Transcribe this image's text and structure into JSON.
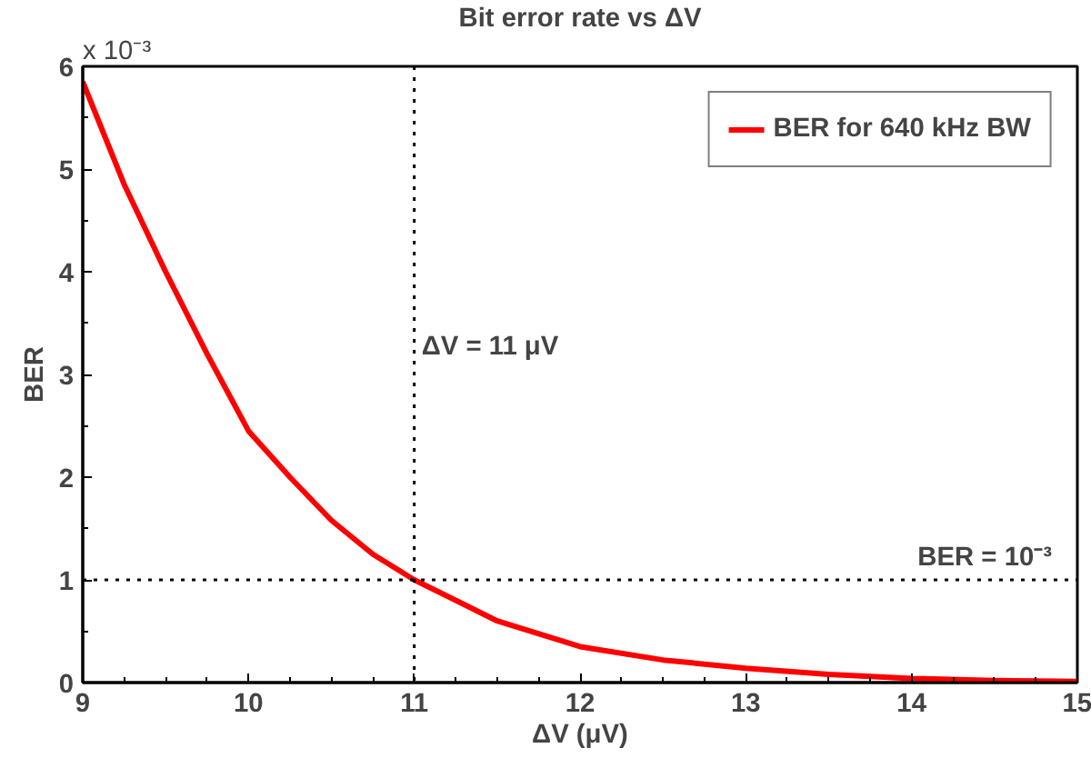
{
  "chart_data": {
    "type": "line",
    "title": "Bit error rate vs ΔV",
    "xlabel": "ΔV (μV)",
    "ylabel": "BER",
    "x": [
      9,
      9.25,
      9.5,
      9.75,
      10,
      10.25,
      10.5,
      10.75,
      11,
      11.5,
      12,
      12.5,
      13,
      13.5,
      14,
      14.5,
      15
    ],
    "series": [
      {
        "name": "BER for 640 kHz BW",
        "color": "#ff0000",
        "values": [
          5.85,
          4.85,
          4.0,
          3.2,
          2.45,
          2.0,
          1.58,
          1.25,
          1.0,
          0.6,
          0.35,
          0.22,
          0.14,
          0.08,
          0.04,
          0.02,
          0.01
        ]
      }
    ],
    "xlim": [
      9,
      15
    ],
    "ylim": [
      0,
      6
    ],
    "xticks": [
      9,
      10,
      11,
      12,
      13,
      14,
      15
    ],
    "yticks": [
      0,
      1,
      2,
      3,
      4,
      5,
      6
    ],
    "ref_lines": [
      {
        "axis": "x",
        "value": 11,
        "label": "ΔV = 11 μV",
        "color": "#000000",
        "line_style": "dotted"
      },
      {
        "axis": "y",
        "value": 1,
        "color": "#000000",
        "line_style": "dotted"
      }
    ],
    "annotations": [
      "x 10⁻³",
      {
        "text": "BER = 10⁻³",
        "x": 15,
        "y": 1
      }
    ],
    "grid": false,
    "legend": "top right",
    "marker": "none",
    "line_style": "solid"
  }
}
